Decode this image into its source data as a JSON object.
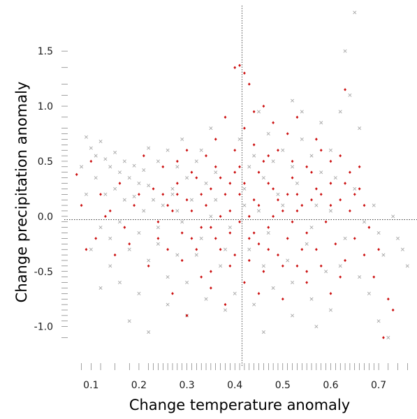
{
  "chart_data": {
    "type": "scatter",
    "title": "",
    "xlabel": "Change temperature anomaly",
    "ylabel": "Change precipitation anomaly",
    "xlim": [
      0.05,
      0.78
    ],
    "ylim": [
      -1.3,
      1.9
    ],
    "x_ticks": [
      0.1,
      0.2,
      0.3,
      0.4,
      0.5,
      0.6,
      0.7
    ],
    "x_tick_labels": [
      "0.1",
      "0.2",
      "0.3",
      "0.4",
      "0.5",
      "0.6",
      "0.7"
    ],
    "y_ticks": [
      -1.0,
      -0.5,
      0.0,
      0.5,
      1.0,
      1.5
    ],
    "y_tick_labels": [
      "-1.0",
      "-0.5",
      "0.0",
      "0.5",
      "1.0",
      "1.5"
    ],
    "reference_lines": {
      "x": 0.415,
      "y": -0.03
    },
    "grid": false,
    "rug": true,
    "series": [
      {
        "marker": "x",
        "color": "#a8a8a8",
        "points": [
          [
            0.09,
            0.72
          ],
          [
            0.1,
            0.62
          ],
          [
            0.11,
            0.55
          ],
          [
            0.12,
            0.68
          ],
          [
            0.13,
            0.52
          ],
          [
            0.14,
            0.45
          ],
          [
            0.15,
            0.58
          ],
          [
            0.16,
            0.4
          ],
          [
            0.17,
            0.5
          ],
          [
            0.18,
            0.35
          ],
          [
            0.19,
            0.46
          ],
          [
            0.2,
            0.3
          ],
          [
            0.21,
            0.42
          ],
          [
            0.22,
            0.28
          ],
          [
            0.11,
            0.35
          ],
          [
            0.13,
            0.2
          ],
          [
            0.15,
            0.25
          ],
          [
            0.17,
            0.15
          ],
          [
            0.19,
            0.18
          ],
          [
            0.21,
            0.05
          ],
          [
            0.12,
            -0.1
          ],
          [
            0.14,
            -0.2
          ],
          [
            0.16,
            -0.05
          ],
          [
            0.18,
            -0.3
          ],
          [
            0.2,
            -0.15
          ],
          [
            0.22,
            -0.4
          ],
          [
            0.24,
            -0.25
          ],
          [
            0.26,
            -0.55
          ],
          [
            0.28,
            -0.35
          ],
          [
            0.3,
            -0.6
          ],
          [
            0.25,
            0.1
          ],
          [
            0.27,
            0.2
          ],
          [
            0.29,
            -0.05
          ],
          [
            0.31,
            0.15
          ],
          [
            0.33,
            -0.2
          ],
          [
            0.35,
            0.0
          ],
          [
            0.37,
            -0.45
          ],
          [
            0.39,
            -0.1
          ],
          [
            0.43,
            -0.3
          ],
          [
            0.45,
            0.05
          ],
          [
            0.47,
            -0.15
          ],
          [
            0.49,
            0.2
          ],
          [
            0.51,
            -0.4
          ],
          [
            0.53,
            0.3
          ],
          [
            0.55,
            -0.25
          ],
          [
            0.57,
            0.1
          ],
          [
            0.59,
            -0.5
          ],
          [
            0.61,
            0.35
          ],
          [
            0.63,
            -0.2
          ],
          [
            0.65,
            0.25
          ],
          [
            0.67,
            -0.05
          ],
          [
            0.69,
            0.1
          ],
          [
            0.71,
            -0.35
          ],
          [
            0.73,
            0.0
          ],
          [
            0.75,
            -0.3
          ],
          [
            0.64,
            1.1
          ],
          [
            0.63,
            1.5
          ],
          [
            0.65,
            1.85
          ],
          [
            0.62,
            0.95
          ],
          [
            0.66,
            0.8
          ],
          [
            0.5,
            0.6
          ],
          [
            0.52,
            0.45
          ],
          [
            0.54,
            0.7
          ],
          [
            0.56,
            0.55
          ],
          [
            0.58,
            0.4
          ],
          [
            0.48,
            0.5
          ],
          [
            0.46,
            0.35
          ],
          [
            0.44,
            0.55
          ],
          [
            0.42,
            0.25
          ],
          [
            0.36,
            0.4
          ],
          [
            0.34,
            0.3
          ],
          [
            0.32,
            0.5
          ],
          [
            0.3,
            0.35
          ],
          [
            0.28,
            0.45
          ],
          [
            0.26,
            0.6
          ],
          [
            0.24,
            0.5
          ],
          [
            0.22,
            0.62
          ],
          [
            0.45,
            0.95
          ],
          [
            0.52,
            1.05
          ],
          [
            0.4,
            -0.7
          ],
          [
            0.44,
            -0.8
          ],
          [
            0.48,
            -0.65
          ],
          [
            0.52,
            -0.9
          ],
          [
            0.56,
            -0.75
          ],
          [
            0.6,
            -0.85
          ],
          [
            0.68,
            -0.7
          ],
          [
            0.7,
            -0.95
          ],
          [
            0.38,
            -0.85
          ],
          [
            0.34,
            -0.75
          ],
          [
            0.3,
            -0.9
          ],
          [
            0.26,
            -0.8
          ],
          [
            0.22,
            -1.05
          ],
          [
            0.2,
            -0.7
          ],
          [
            0.18,
            -0.95
          ],
          [
            0.16,
            -0.6
          ],
          [
            0.14,
            -0.45
          ],
          [
            0.12,
            -0.65
          ],
          [
            0.1,
            -0.3
          ],
          [
            0.09,
            0.2
          ],
          [
            0.08,
            0.45
          ],
          [
            0.57,
            -1.0
          ],
          [
            0.46,
            -1.05
          ],
          [
            0.62,
            -0.45
          ],
          [
            0.66,
            -0.55
          ],
          [
            0.7,
            -0.15
          ],
          [
            0.74,
            -0.2
          ],
          [
            0.76,
            -0.45
          ],
          [
            0.72,
            -1.1
          ],
          [
            0.6,
            0.05
          ],
          [
            0.56,
            -0.1
          ],
          [
            0.5,
            0.1
          ],
          [
            0.46,
            -0.45
          ],
          [
            0.42,
            0.1
          ],
          [
            0.38,
            -0.3
          ],
          [
            0.36,
            0.15
          ],
          [
            0.32,
            -0.35
          ],
          [
            0.28,
            0.05
          ],
          [
            0.24,
            -0.1
          ],
          [
            0.6,
            0.6
          ],
          [
            0.58,
            0.85
          ],
          [
            0.54,
            0.95
          ],
          [
            0.43,
            0.45
          ],
          [
            0.47,
            0.75
          ],
          [
            0.41,
            0.7
          ],
          [
            0.35,
            0.8
          ],
          [
            0.33,
            0.6
          ],
          [
            0.29,
            0.7
          ],
          [
            0.27,
            0.25
          ],
          [
            0.23,
            0.15
          ],
          [
            0.52,
            -0.6
          ]
        ]
      },
      {
        "marker": "diamond",
        "color": "#cc1111",
        "points": [
          [
            0.07,
            0.38
          ],
          [
            0.08,
            0.1
          ],
          [
            0.09,
            -0.3
          ],
          [
            0.1,
            0.5
          ],
          [
            0.11,
            -0.2
          ],
          [
            0.12,
            0.2
          ],
          [
            0.13,
            0.0
          ],
          [
            0.15,
            -0.35
          ],
          [
            0.16,
            0.3
          ],
          [
            0.17,
            -0.1
          ],
          [
            0.19,
            0.1
          ],
          [
            0.21,
            0.55
          ],
          [
            0.22,
            -0.45
          ],
          [
            0.23,
            0.25
          ],
          [
            0.24,
            -0.05
          ],
          [
            0.25,
            0.2
          ],
          [
            0.26,
            -0.3
          ],
          [
            0.27,
            0.05
          ],
          [
            0.28,
            0.3
          ],
          [
            0.29,
            -0.4
          ],
          [
            0.3,
            0.15
          ],
          [
            0.31,
            -0.2
          ],
          [
            0.32,
            0.35
          ],
          [
            0.33,
            -0.55
          ],
          [
            0.34,
            0.1
          ],
          [
            0.35,
            -0.1
          ],
          [
            0.36,
            0.45
          ],
          [
            0.37,
            -0.3
          ],
          [
            0.38,
            0.2
          ],
          [
            0.39,
            -0.15
          ],
          [
            0.4,
            0.4
          ],
          [
            0.41,
            -0.05
          ],
          [
            0.42,
            0.3
          ],
          [
            0.43,
            -0.4
          ],
          [
            0.44,
            0.15
          ],
          [
            0.45,
            -0.25
          ],
          [
            0.46,
            0.5
          ],
          [
            0.47,
            -0.1
          ],
          [
            0.48,
            0.25
          ],
          [
            0.49,
            -0.35
          ],
          [
            0.5,
            0.05
          ],
          [
            0.51,
            -0.2
          ],
          [
            0.52,
            0.35
          ],
          [
            0.53,
            -0.45
          ],
          [
            0.54,
            0.1
          ],
          [
            0.55,
            -0.15
          ],
          [
            0.56,
            0.4
          ],
          [
            0.57,
            -0.3
          ],
          [
            0.58,
            0.2
          ],
          [
            0.59,
            -0.05
          ],
          [
            0.6,
            0.3
          ],
          [
            0.61,
            -0.25
          ],
          [
            0.62,
            0.15
          ],
          [
            0.63,
            -0.4
          ],
          [
            0.64,
            0.05
          ],
          [
            0.65,
            -0.2
          ],
          [
            0.66,
            0.25
          ],
          [
            0.67,
            -0.35
          ],
          [
            0.68,
            -0.1
          ],
          [
            0.69,
            -0.55
          ],
          [
            0.7,
            -0.3
          ],
          [
            0.72,
            -0.75
          ],
          [
            0.73,
            -0.85
          ],
          [
            0.71,
            -1.1
          ],
          [
            0.6,
            -0.7
          ],
          [
            0.55,
            -0.6
          ],
          [
            0.5,
            -0.75
          ],
          [
            0.45,
            -0.7
          ],
          [
            0.42,
            -0.6
          ],
          [
            0.38,
            -0.8
          ],
          [
            0.35,
            -0.65
          ],
          [
            0.3,
            -0.9
          ],
          [
            0.27,
            -0.7
          ],
          [
            0.4,
            1.35
          ],
          [
            0.41,
            1.37
          ],
          [
            0.42,
            1.3
          ],
          [
            0.43,
            1.2
          ],
          [
            0.44,
            0.95
          ],
          [
            0.46,
            1.0
          ],
          [
            0.48,
            0.85
          ],
          [
            0.51,
            0.75
          ],
          [
            0.53,
            0.9
          ],
          [
            0.57,
            0.7
          ],
          [
            0.62,
            0.55
          ],
          [
            0.64,
            0.4
          ],
          [
            0.66,
            0.45
          ],
          [
            0.38,
            0.9
          ],
          [
            0.36,
            0.7
          ],
          [
            0.34,
            0.55
          ],
          [
            0.3,
            0.6
          ],
          [
            0.28,
            0.5
          ],
          [
            0.25,
            0.45
          ],
          [
            0.4,
            0.6
          ],
          [
            0.42,
            0.8
          ],
          [
            0.44,
            0.65
          ],
          [
            0.47,
            0.55
          ],
          [
            0.49,
            0.6
          ],
          [
            0.52,
            0.5
          ],
          [
            0.55,
            0.45
          ],
          [
            0.58,
            0.6
          ],
          [
            0.6,
            0.5
          ],
          [
            0.63,
            1.15
          ],
          [
            0.39,
            0.05
          ],
          [
            0.41,
            0.2
          ],
          [
            0.43,
            0.0
          ],
          [
            0.45,
            0.1
          ],
          [
            0.47,
            0.3
          ],
          [
            0.49,
            0.15
          ],
          [
            0.51,
            0.2
          ],
          [
            0.53,
            0.05
          ],
          [
            0.33,
            -0.1
          ],
          [
            0.37,
            0.0
          ],
          [
            0.31,
            0.05
          ],
          [
            0.29,
            -0.15
          ],
          [
            0.35,
            0.25
          ],
          [
            0.4,
            -0.35
          ],
          [
            0.46,
            -0.5
          ],
          [
            0.5,
            -0.45
          ],
          [
            0.54,
            -0.3
          ],
          [
            0.58,
            -0.45
          ],
          [
            0.62,
            -0.55
          ],
          [
            0.6,
            0.1
          ],
          [
            0.56,
            0.15
          ],
          [
            0.52,
            -0.05
          ],
          [
            0.48,
            0.0
          ],
          [
            0.44,
            -0.15
          ],
          [
            0.36,
            -0.2
          ],
          [
            0.32,
            -0.3
          ],
          [
            0.28,
            0.2
          ],
          [
            0.26,
            0.1
          ],
          [
            0.24,
            -0.2
          ],
          [
            0.2,
            0.2
          ],
          [
            0.18,
            -0.25
          ],
          [
            0.14,
            0.05
          ],
          [
            0.65,
            0.2
          ],
          [
            0.67,
            0.1
          ],
          [
            0.63,
            0.3
          ],
          [
            0.57,
            0.25
          ],
          [
            0.53,
            0.2
          ],
          [
            0.45,
            0.4
          ],
          [
            0.41,
            0.45
          ],
          [
            0.39,
            0.3
          ],
          [
            0.37,
            0.35
          ],
          [
            0.33,
            0.2
          ],
          [
            0.31,
            0.4
          ],
          [
            0.47,
            -0.3
          ],
          [
            0.43,
            -0.2
          ],
          [
            0.39,
            -0.45
          ],
          [
            0.35,
            -0.5
          ],
          [
            0.55,
            -0.5
          ]
        ]
      }
    ],
    "rug_x": [
      0.08,
      0.1,
      0.12,
      0.15,
      0.18,
      0.2,
      0.22,
      0.23,
      0.24,
      0.25,
      0.26,
      0.27,
      0.28,
      0.29,
      0.3,
      0.31,
      0.32,
      0.33,
      0.34,
      0.35,
      0.36,
      0.37,
      0.38,
      0.39,
      0.4,
      0.41,
      0.42,
      0.43,
      0.44,
      0.45,
      0.46,
      0.47,
      0.48,
      0.49,
      0.5,
      0.51,
      0.52,
      0.53,
      0.54,
      0.55,
      0.56,
      0.57,
      0.58,
      0.59,
      0.6,
      0.61,
      0.62,
      0.63,
      0.64,
      0.65,
      0.66,
      0.67,
      0.68,
      0.69,
      0.7,
      0.72,
      0.74,
      0.76
    ],
    "rug_y": [
      -1.1,
      -1.0,
      -0.95,
      -0.9,
      -0.85,
      -0.8,
      -0.75,
      -0.7,
      -0.65,
      -0.6,
      -0.55,
      -0.5,
      -0.45,
      -0.4,
      -0.35,
      -0.3,
      -0.25,
      -0.2,
      -0.15,
      -0.1,
      -0.05,
      0.0,
      0.05,
      0.1,
      0.15,
      0.2,
      0.25,
      0.3,
      0.35,
      0.4,
      0.45,
      0.5,
      0.55,
      0.6,
      0.65,
      0.7,
      0.75,
      0.8,
      0.9,
      1.0,
      1.1,
      1.2,
      1.35,
      1.5
    ]
  }
}
